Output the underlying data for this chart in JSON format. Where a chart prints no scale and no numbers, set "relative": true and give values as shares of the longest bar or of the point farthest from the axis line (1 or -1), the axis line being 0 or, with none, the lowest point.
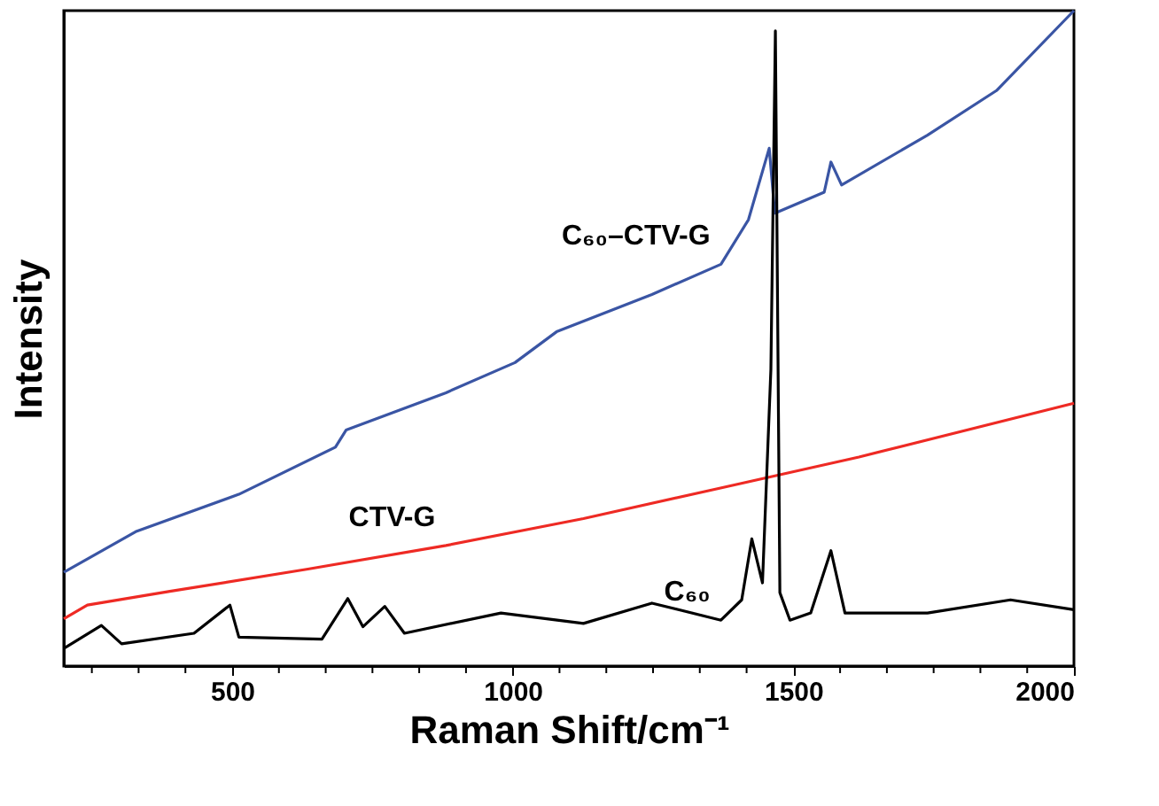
{
  "chart_data": {
    "type": "line",
    "relative": true,
    "xlabel": "Raman Shift/cm⁻¹",
    "ylabel": "Intensity",
    "xlim": [
      200,
      2000
    ],
    "xticks": [
      {
        "value": 250,
        "label": null
      },
      {
        "value": 333.3,
        "label": null
      },
      {
        "value": 416.7,
        "label": null
      },
      500,
      {
        "value": 583.3,
        "label": null
      },
      {
        "value": 666.7,
        "label": null
      },
      {
        "value": 750,
        "label": null
      },
      {
        "value": 833.3,
        "label": null
      },
      {
        "value": 916.7,
        "label": null
      },
      1000,
      {
        "value": 1083.3,
        "label": null
      },
      {
        "value": 1166.7,
        "label": null
      },
      {
        "value": 1250,
        "label": null
      },
      {
        "value": 1333.3,
        "label": null
      },
      {
        "value": 1416.7,
        "label": null
      },
      1500,
      {
        "value": 1583.3,
        "label": null
      },
      {
        "value": 1666.7,
        "label": null
      },
      {
        "value": 1750,
        "label": null
      },
      {
        "value": 1833.3,
        "label": null
      },
      {
        "value": 1916.7,
        "label": null
      },
      2000
    ],
    "grid": false,
    "legend": false,
    "line_style": "solid",
    "marker": "none",
    "series": [
      {
        "name": "C₆₀–CTV-G",
        "color": "#3a55a4",
        "x": [
          200,
          328,
          512,
          684,
          703,
          881,
          1004,
          1078,
          1248,
          1371,
          1420,
          1457,
          1467,
          1555,
          1567,
          1586,
          1739,
          1862,
          2000
        ],
        "values": [
          0.143,
          0.205,
          0.262,
          0.334,
          0.36,
          0.417,
          0.463,
          0.51,
          0.567,
          0.613,
          0.681,
          0.79,
          0.691,
          0.723,
          0.769,
          0.734,
          0.81,
          0.878,
          1.0
        ]
      },
      {
        "name": "CTV-G",
        "color": "#ee2a24",
        "x": [
          200,
          242,
          389,
          635,
          881,
          1126,
          1372,
          1617,
          2000
        ],
        "values": [
          0.072,
          0.093,
          0.114,
          0.148,
          0.184,
          0.225,
          0.272,
          0.319,
          0.401
        ]
      },
      {
        "name": "C₆₀",
        "color": "#000000",
        "x": [
          200,
          267,
          303,
          432,
          496,
          512,
          660,
          706,
          733,
          772,
          807,
          979,
          1126,
          1248,
          1371,
          1408,
          1426,
          1445,
          1460,
          1468,
          1476,
          1494,
          1531,
          1567,
          1592,
          1739,
          1887,
          2000
        ],
        "values": [
          0.027,
          0.062,
          0.034,
          0.05,
          0.093,
          0.044,
          0.041,
          0.103,
          0.06,
          0.091,
          0.05,
          0.081,
          0.065,
          0.096,
          0.07,
          0.101,
          0.194,
          0.127,
          0.453,
          0.969,
          0.112,
          0.07,
          0.081,
          0.176,
          0.081,
          0.081,
          0.101,
          0.086
        ]
      }
    ]
  }
}
